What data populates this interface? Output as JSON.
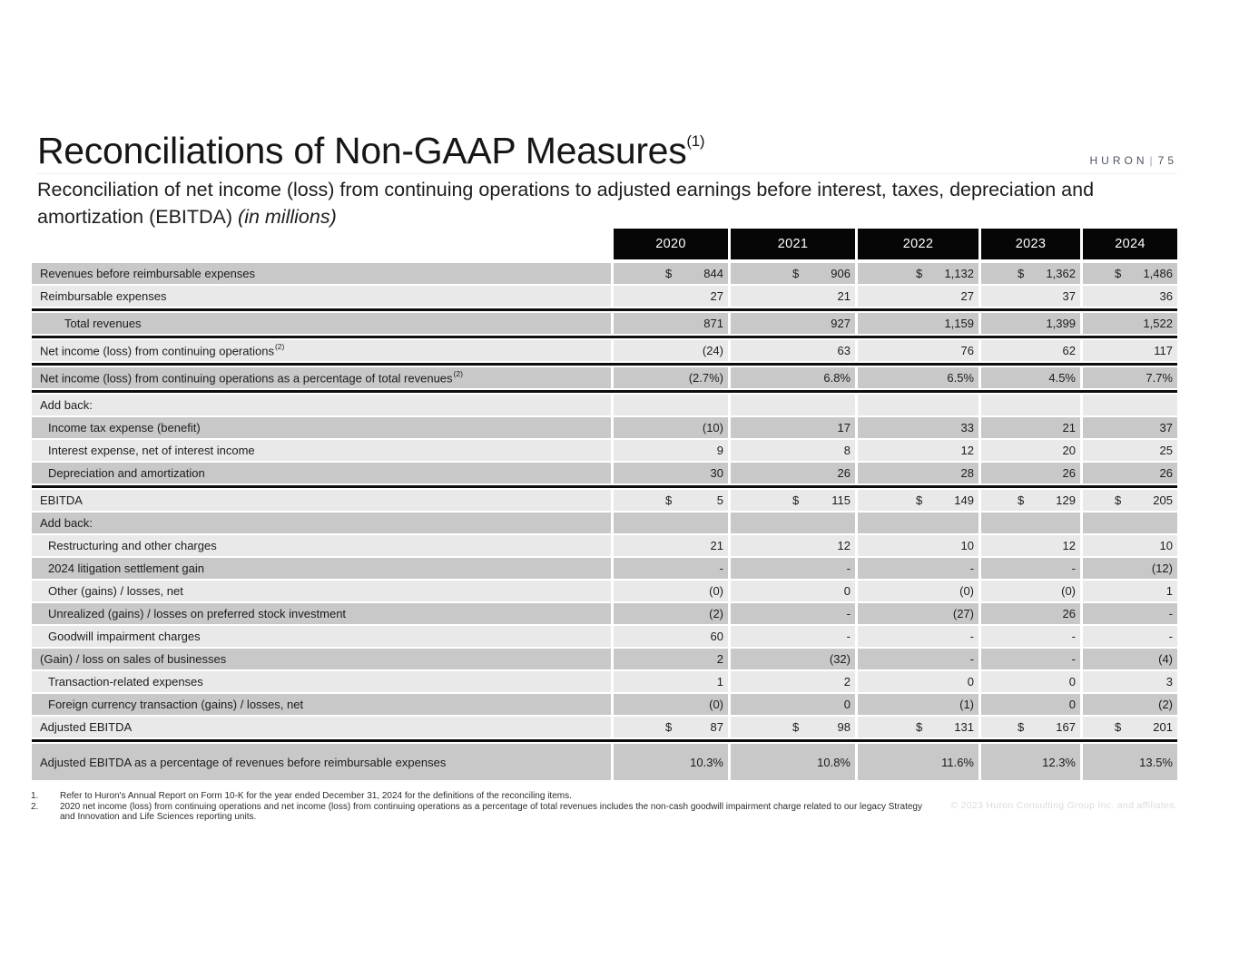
{
  "page": {
    "title": "Reconciliations of Non-GAAP Measures",
    "title_sup": "(1)",
    "subtitle_main": "Reconciliation of net income (loss) from continuing operations to adjusted earnings before interest, taxes, depreciation and amortization (EBITDA) ",
    "subtitle_italic": "(in millions)",
    "brand": "HURON",
    "brand_divider": "|",
    "page_number": "75",
    "copyright": "© 2023 Huron Consulting Group Inc. and affiliates."
  },
  "colors": {
    "stripe_dark": "#c8c8c8",
    "stripe_light": "#e9e9e9",
    "header_bg": "#060606"
  },
  "table": {
    "columns": [
      "2020",
      "2021",
      "2022",
      "2023",
      "2024"
    ],
    "rows": [
      {
        "label": "Revenues before reimbursable expenses",
        "indent": 0,
        "shade": "dark",
        "dollar": true,
        "values": [
          "844",
          "906",
          "1,132",
          "1,362",
          "1,486"
        ]
      },
      {
        "label": "Reimbursable expenses",
        "indent": 0,
        "shade": "light",
        "values": [
          "27",
          "21",
          "27",
          "37",
          "36"
        ]
      },
      {
        "type": "divider"
      },
      {
        "label": "Total revenues",
        "indent": 2,
        "shade": "dark",
        "values": [
          "871",
          "927",
          "1,159",
          "1,399",
          "1,522"
        ]
      },
      {
        "type": "divider"
      },
      {
        "label": "Net income (loss) from continuing operations",
        "sup": "(2)",
        "indent": 0,
        "shade": "light",
        "values": [
          "(24)",
          "63",
          "76",
          "62",
          "117"
        ]
      },
      {
        "type": "divider"
      },
      {
        "label": "Net income (loss) from continuing operations as a percentage of total revenues",
        "sup": "(2)",
        "indent": 0,
        "shade": "dark",
        "values": [
          "(2.7%)",
          "6.8%",
          "6.5%",
          "4.5%",
          "7.7%"
        ]
      },
      {
        "type": "divider"
      },
      {
        "label": "Add back:",
        "indent": 0,
        "shade": "light",
        "values": [
          "",
          "",
          "",
          "",
          ""
        ]
      },
      {
        "label": "Income tax expense (benefit)",
        "indent": 1,
        "shade": "dark",
        "values": [
          "(10)",
          "17",
          "33",
          "21",
          "37"
        ]
      },
      {
        "label": "Interest expense, net of interest income",
        "indent": 1,
        "shade": "light",
        "values": [
          "9",
          "8",
          "12",
          "20",
          "25"
        ]
      },
      {
        "label": "Depreciation and amortization",
        "indent": 1,
        "shade": "dark",
        "values": [
          "30",
          "26",
          "28",
          "26",
          "26"
        ]
      },
      {
        "type": "divider"
      },
      {
        "label": "EBITDA",
        "indent": 0,
        "shade": "light",
        "dollar": true,
        "values": [
          "5",
          "115",
          "149",
          "129",
          "205"
        ]
      },
      {
        "label": "Add back:",
        "indent": 0,
        "shade": "dark",
        "values": [
          "",
          "",
          "",
          "",
          ""
        ]
      },
      {
        "label": "Restructuring and other charges",
        "indent": 1,
        "shade": "light",
        "values": [
          "21",
          "12",
          "10",
          "12",
          "10"
        ]
      },
      {
        "label": "2024 litigation settlement gain",
        "indent": 1,
        "shade": "dark",
        "values": [
          "-",
          "-",
          "-",
          "-",
          "(12)"
        ]
      },
      {
        "label": "Other (gains) / losses, net",
        "indent": 1,
        "shade": "light",
        "values": [
          "(0)",
          "0",
          "(0)",
          "(0)",
          "1"
        ]
      },
      {
        "label": "Unrealized (gains) / losses on preferred stock investment",
        "indent": 1,
        "shade": "dark",
        "values": [
          "(2)",
          "-",
          "(27)",
          "26",
          "-"
        ]
      },
      {
        "label": "Goodwill impairment charges",
        "indent": 1,
        "shade": "light",
        "values": [
          "60",
          "-",
          "-",
          "-",
          "-"
        ]
      },
      {
        "label": "(Gain) / loss on sales of businesses",
        "indent": 0,
        "shade": "dark",
        "values": [
          "2",
          "(32)",
          "-",
          "-",
          "(4)"
        ]
      },
      {
        "label": "Transaction-related expenses",
        "indent": 1,
        "shade": "light",
        "values": [
          "1",
          "2",
          "0",
          "0",
          "3"
        ]
      },
      {
        "label": "Foreign currency transaction (gains) / losses, net",
        "indent": 1,
        "shade": "dark",
        "values": [
          "(0)",
          "0",
          "(1)",
          "0",
          "(2)"
        ]
      },
      {
        "label": "Adjusted EBITDA",
        "indent": 0,
        "shade": "light",
        "dollar": true,
        "values": [
          "87",
          "98",
          "131",
          "167",
          "201"
        ]
      },
      {
        "type": "divider"
      },
      {
        "label": "Adjusted EBITDA as a percentage of revenues before reimbursable expenses",
        "indent": 0,
        "shade": "dark",
        "tall": true,
        "values": [
          "10.3%",
          "10.8%",
          "11.6%",
          "12.3%",
          "13.5%"
        ]
      }
    ]
  },
  "footnotes": [
    {
      "num": "1.",
      "text": "Refer to Huron's Annual Report on Form 10-K for the year ended December 31, 2024 for the definitions of the reconciling items."
    },
    {
      "num": "2.",
      "text": "2020 net income (loss) from continuing operations and net income (loss) from continuing operations as a percentage of total revenues includes the non-cash goodwill impairment charge related to our legacy Strategy and Innovation and Life Sciences reporting units."
    }
  ]
}
